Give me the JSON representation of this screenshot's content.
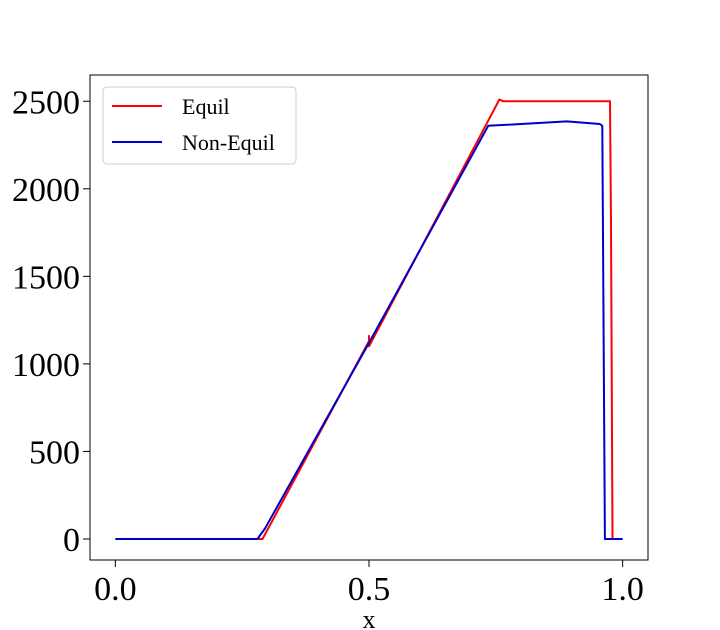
{
  "chart_data": {
    "type": "line",
    "title": "",
    "xlabel": "x",
    "ylabel": "",
    "xlim": [
      -0.05,
      1.05
    ],
    "ylim": [
      -120,
      2650
    ],
    "xticks": [
      0.0,
      0.5,
      1.0
    ],
    "xtick_labels": [
      "0.0",
      "0.5",
      "1.0"
    ],
    "yticks": [
      0,
      500,
      1000,
      1500,
      2000,
      2500
    ],
    "ytick_labels": [
      "0",
      "500",
      "1000",
      "1500",
      "2000",
      "2500"
    ],
    "grid": false,
    "legend_position": "top-left",
    "series": [
      {
        "name": "Equil",
        "color": "#ff0000",
        "points": [
          [
            0.0,
            0
          ],
          [
            0.29,
            0
          ],
          [
            0.5,
            1130
          ],
          [
            0.5,
            1160
          ],
          [
            0.5,
            1100
          ],
          [
            0.757,
            2510
          ],
          [
            0.765,
            2500
          ],
          [
            0.97,
            2500
          ],
          [
            0.975,
            2500
          ],
          [
            0.977,
            1800
          ],
          [
            0.98,
            0
          ],
          [
            1.0,
            0
          ]
        ]
      },
      {
        "name": "Non-Equil",
        "color": "#0000cc",
        "points": [
          [
            0.0,
            0
          ],
          [
            0.28,
            0
          ],
          [
            0.295,
            60
          ],
          [
            0.5,
            1120
          ],
          [
            0.735,
            2360
          ],
          [
            0.89,
            2385
          ],
          [
            0.955,
            2370
          ],
          [
            0.96,
            2360
          ],
          [
            0.965,
            0
          ],
          [
            1.0,
            0
          ]
        ]
      }
    ]
  }
}
